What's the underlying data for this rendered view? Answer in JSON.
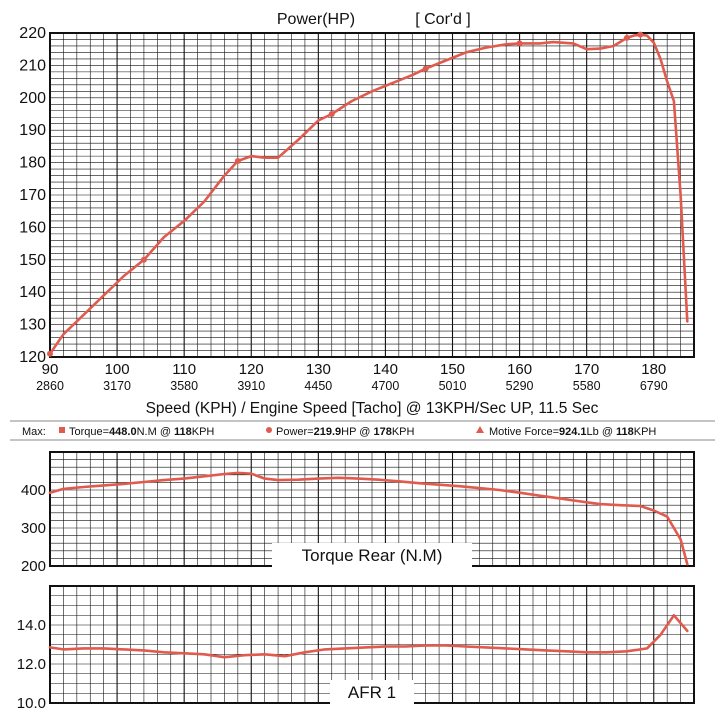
{
  "chart_data": [
    {
      "type": "line",
      "title": "Power(HP)",
      "title_note": "[ Cor'd ]",
      "xlabel": "Speed (KPH) / Engine Speed [Tacho] @ 13KPH/Sec UP, 11.5 Sec",
      "xlim": [
        90,
        186
      ],
      "ylim": [
        120,
        220
      ],
      "x_ticks": [
        90,
        100,
        110,
        120,
        130,
        140,
        150,
        160,
        170,
        180
      ],
      "y_ticks": [
        120,
        130,
        140,
        150,
        160,
        170,
        180,
        190,
        200,
        210,
        220
      ],
      "rpm_ticks": [
        "2860",
        "3170",
        "3580",
        "3910",
        "4450",
        "4700",
        "5010",
        "5290",
        "5580",
        "6790"
      ],
      "grid": true,
      "color": "#e05a4e",
      "series": [
        {
          "x": [
            90,
            92,
            95,
            98,
            101,
            104,
            107,
            110,
            113,
            116,
            118,
            120,
            122,
            124,
            127,
            130,
            132,
            135,
            138,
            141,
            144,
            146,
            149,
            152,
            155,
            158,
            160,
            163,
            165,
            168,
            170,
            172,
            174,
            176,
            177,
            178,
            179,
            180,
            181,
            182,
            183,
            184,
            185
          ],
          "y": [
            121,
            127,
            133,
            139,
            145,
            150,
            157,
            162,
            168,
            176,
            180.5,
            182,
            181.5,
            181.5,
            187,
            193,
            195,
            199,
            202,
            204.5,
            207,
            209,
            211.5,
            214,
            215.5,
            216.5,
            216.8,
            216.8,
            217.2,
            216.8,
            215,
            215.2,
            216,
            218.5,
            219.2,
            219.5,
            219.2,
            217,
            212,
            205,
            199,
            170,
            131
          ]
        }
      ]
    },
    {
      "type": "line",
      "title": "Torque Rear (N.M)",
      "ylim": [
        200,
        500
      ],
      "y_ticks": [
        200,
        300,
        400
      ],
      "xlim": [
        90,
        186
      ],
      "grid": true,
      "color": "#e05a4e",
      "series": [
        {
          "x": [
            90,
            92,
            95,
            98,
            101,
            104,
            107,
            110,
            113,
            116,
            118,
            120,
            122,
            124,
            127,
            130,
            133,
            136,
            139,
            142,
            145,
            148,
            151,
            154,
            157,
            160,
            163,
            166,
            169,
            172,
            175,
            178,
            180,
            182,
            184,
            185
          ],
          "y": [
            393,
            403,
            408,
            412,
            416,
            421,
            426,
            430,
            436,
            442,
            445,
            443,
            430,
            426,
            427,
            430,
            432,
            430,
            427,
            423,
            418,
            414,
            410,
            405,
            400,
            393,
            385,
            378,
            370,
            363,
            360,
            358,
            346,
            330,
            270,
            205
          ]
        }
      ]
    },
    {
      "type": "line",
      "title": "AFR 1",
      "ylim": [
        10,
        16
      ],
      "y_ticks": [
        10,
        12,
        14
      ],
      "y_tick_labels": [
        "10.0",
        "12.0",
        "14.0"
      ],
      "xlim": [
        90,
        186
      ],
      "grid": true,
      "color": "#e05a4e",
      "series": [
        {
          "x": [
            90,
            92,
            95,
            98,
            101,
            104,
            107,
            110,
            113,
            116,
            119,
            122,
            125,
            128,
            131,
            134,
            137,
            140,
            143,
            146,
            149,
            152,
            155,
            158,
            161,
            164,
            167,
            170,
            173,
            176,
            179,
            181,
            183,
            185
          ],
          "y": [
            12.85,
            12.75,
            12.8,
            12.8,
            12.75,
            12.7,
            12.6,
            12.55,
            12.5,
            12.35,
            12.45,
            12.5,
            12.4,
            12.6,
            12.75,
            12.8,
            12.85,
            12.9,
            12.9,
            12.95,
            12.95,
            12.9,
            12.85,
            12.8,
            12.75,
            12.7,
            12.65,
            12.6,
            12.6,
            12.65,
            12.8,
            13.5,
            14.5,
            13.7
          ]
        }
      ]
    }
  ],
  "max_bar": {
    "label": "Max:",
    "torque_text": "Torque=",
    "torque_value": "448.0",
    "torque_unit": "N.M @",
    "torque_speed": "118",
    "torque_speed_unit": "KPH",
    "power_text": "Power=",
    "power_value": "219.9",
    "power_unit": "HP @",
    "power_speed": "178",
    "power_speed_unit": "KPH",
    "force_text": "Motive Force=",
    "force_value": "924.1",
    "force_unit": "Lb @",
    "force_speed": "118",
    "force_speed_unit": "KPH"
  }
}
